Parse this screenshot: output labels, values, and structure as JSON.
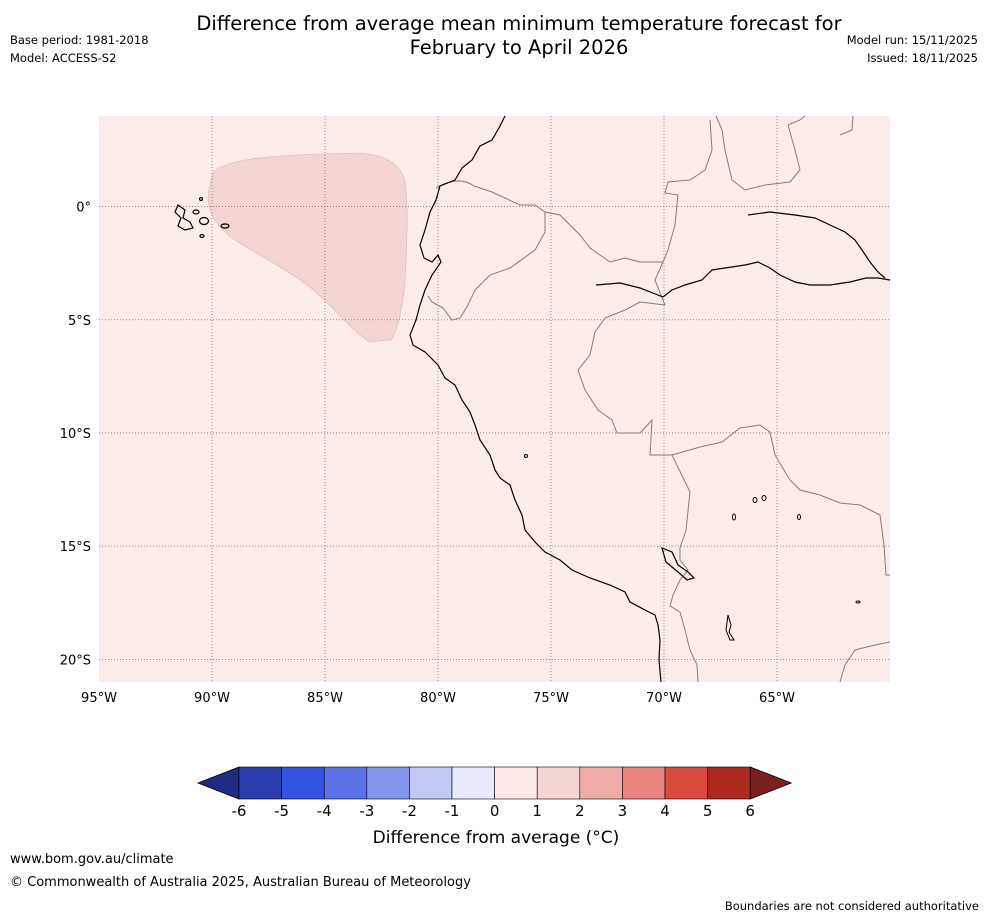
{
  "header": {
    "title_line1": "Difference from average mean minimum temperature forecast for",
    "title_line2": "February to April 2026",
    "base_period": "Base period: 1981-2018",
    "model": "Model: ACCESS-S2",
    "model_run": "Model run: 15/11/2025",
    "issued": "Issued: 18/11/2025"
  },
  "map": {
    "region": "Ecuador / Peru / western Brazil / Bolivia",
    "extent": {
      "lon": [
        -95,
        -60
      ],
      "lat": [
        -21,
        4
      ]
    },
    "background_category": "0 to 1",
    "anomaly_region": {
      "category": "1 to 2",
      "location": "offshore west of Ecuador, near the equator"
    },
    "lat_labels": [
      "0°",
      "5°S",
      "10°S",
      "15°S",
      "20°S"
    ],
    "lat_values": [
      0,
      -5,
      -10,
      -15,
      -20
    ],
    "lon_labels": [
      "95°W",
      "90°W",
      "85°W",
      "80°W",
      "75°W",
      "70°W",
      "65°W"
    ],
    "lon_values": [
      -95,
      -90,
      -85,
      -80,
      -75,
      -70,
      -65
    ],
    "colors": {
      "land_fill": "#fbebe9",
      "anomaly_fill": "#f3d6d4",
      "coast": "#000000",
      "border": "#8a7a7a",
      "grid": "#777777"
    }
  },
  "colorbar": {
    "ticks": [
      "-6",
      "-5",
      "-4",
      "-3",
      "-2",
      "-1",
      "0",
      "1",
      "2",
      "3",
      "4",
      "5",
      "6"
    ],
    "colors": [
      "#1f2b85",
      "#2a3eb0",
      "#3353e3",
      "#5c72e8",
      "#8496ec",
      "#c0c8f3",
      "#e8ebfb",
      "#fce8e6",
      "#f3d5d3",
      "#efaca6",
      "#e8867e",
      "#db4a3e",
      "#ad2a21",
      "#7a2020"
    ],
    "label": "Difference from average (°C)"
  },
  "footer": {
    "url": "www.bom.gov.au/climate",
    "copyright": "© Commonwealth of Australia 2025, Australian Bureau of Meteorology",
    "disclaimer": "Boundaries are not considered authoritative"
  }
}
